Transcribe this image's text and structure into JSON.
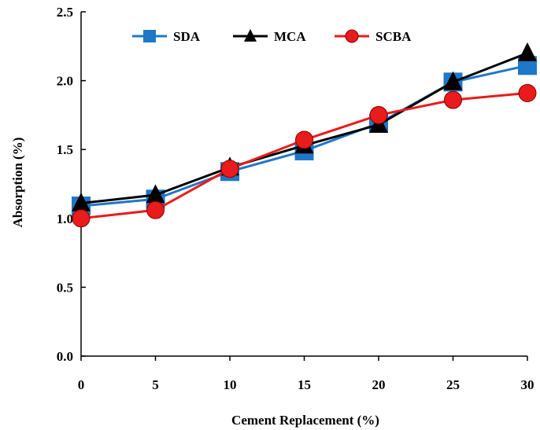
{
  "chart_data": {
    "type": "line",
    "title": "",
    "xlabel": "Cement Replacement (%)",
    "ylabel": "Absorption (%)",
    "x": [
      0,
      5,
      10,
      15,
      20,
      25,
      30
    ],
    "x_ticks": [
      "0",
      "5",
      "10",
      "15",
      "20",
      "25",
      "30"
    ],
    "y_ticks": [
      "0.0",
      "0.5",
      "1.0",
      "1.5",
      "2.0",
      "2.5"
    ],
    "xlim": [
      0,
      30
    ],
    "ylim": [
      0,
      2.5
    ],
    "grid": false,
    "legend_position": "top",
    "series": [
      {
        "name": "SDA",
        "color": "#1f77c8",
        "marker": "square",
        "values": [
          1.09,
          1.14,
          1.34,
          1.49,
          1.69,
          1.99,
          2.11
        ]
      },
      {
        "name": "MCA",
        "color": "#000000",
        "marker": "triangle",
        "values": [
          1.11,
          1.17,
          1.37,
          1.53,
          1.68,
          1.99,
          2.2
        ]
      },
      {
        "name": "SCBA",
        "color": "#e81c1c",
        "marker": "circle",
        "values": [
          1.0,
          1.06,
          1.36,
          1.57,
          1.75,
          1.86,
          1.91
        ]
      }
    ]
  }
}
